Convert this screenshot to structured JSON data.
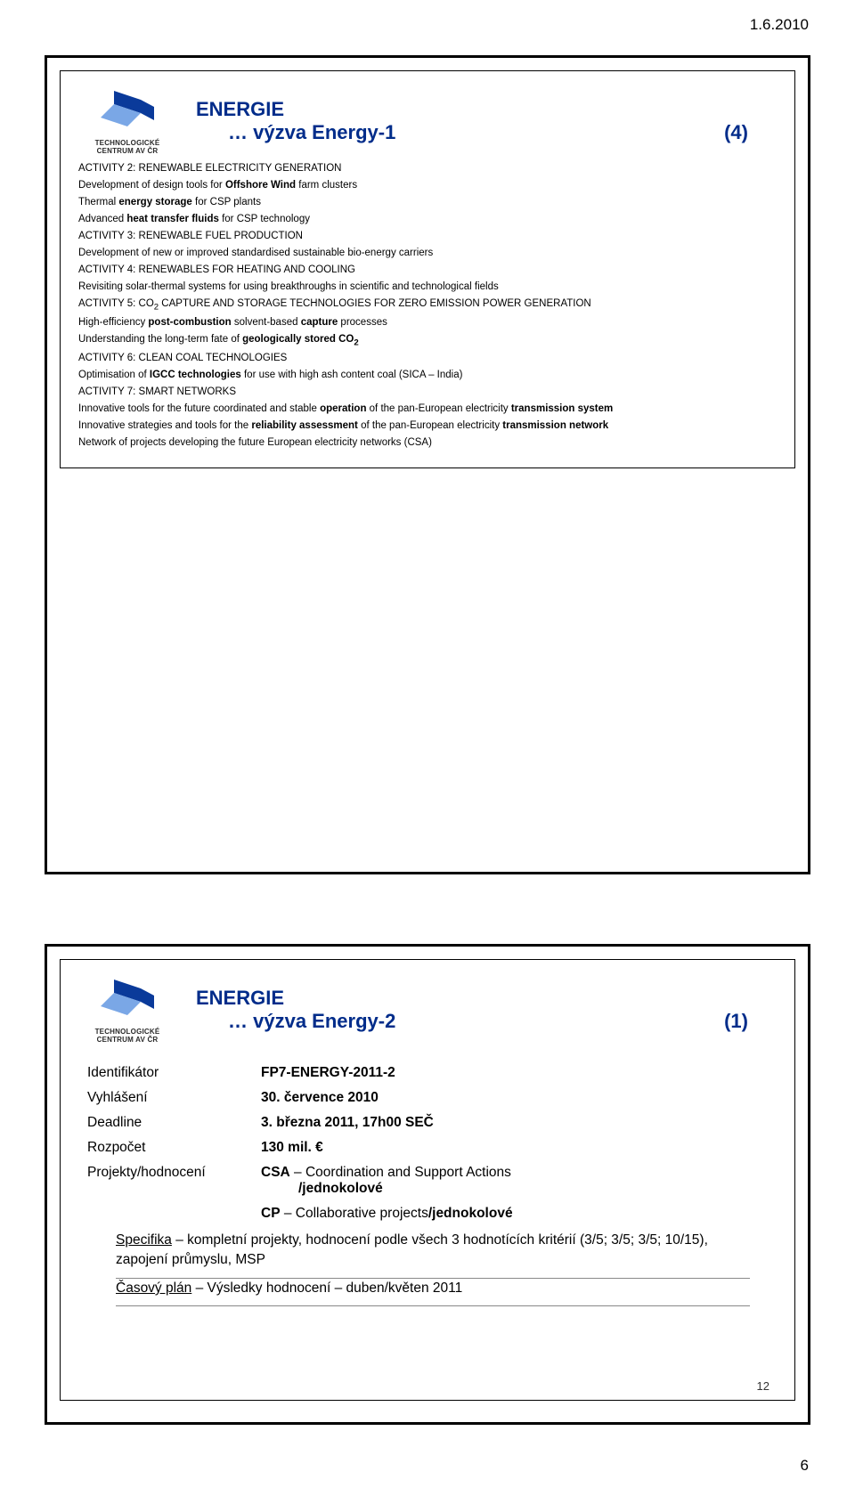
{
  "page": {
    "date": "1.6.2010",
    "footer_page_num": "6"
  },
  "logo": {
    "line1": "TECHNOLOGICKÉ",
    "line2": "CENTRUM AV ČR",
    "color_primary": "#0a3a9a",
    "color_secondary": "#7aa7e6"
  },
  "slide1": {
    "title_top": "ENERGIE",
    "title_sub": "… výzva Energy-1",
    "title_tag": "(4)",
    "lines": [
      {
        "t": "ACTIVITY 2: RENEWABLE ELECTRICITY GENERATION"
      },
      {
        "html": "Development of design tools for <b>Offshore Wind</b> farm clusters"
      },
      {
        "html": "Thermal <b>energy storage</b> for CSP plants"
      },
      {
        "html": "Advanced <b>heat transfer fluids</b> for CSP technology"
      },
      {
        "t": "ACTIVITY 3: RENEWABLE FUEL PRODUCTION"
      },
      {
        "html": "Development of new or improved standardised sustainable bio-energy carriers"
      },
      {
        "t": "ACTIVITY 4: RENEWABLES FOR HEATING AND COOLING"
      },
      {
        "html": "Revisiting solar-thermal systems for using breakthroughs in scientific and technological fields"
      },
      {
        "html": "ACTIVITY 5: CO<sub>2</sub> CAPTURE AND STORAGE TECHNOLOGIES FOR ZERO EMISSION POWER GENERATION"
      },
      {
        "html": "High-efficiency <b>post-combustion</b> solvent-based <b>capture</b> processes"
      },
      {
        "html": "Understanding the long-term fate of <b>geologically stored CO<sub>2</sub></b>"
      },
      {
        "t": "ACTIVITY 6: CLEAN COAL TECHNOLOGIES"
      },
      {
        "html": "Optimisation of <b>IGCC technologies</b> for use with high ash content coal (SICA – India)"
      },
      {
        "t": "ACTIVITY 7: SMART NETWORKS"
      },
      {
        "html": "Innovative tools for the future coordinated and stable <b>operation</b> of the pan-European electricity <b>transmission system</b>"
      },
      {
        "html": "Innovative strategies and tools for the <b>reliability assessment</b> of the pan-European electricity <b>transmission network</b>"
      },
      {
        "html": "Network of projects developing the future European electricity networks (CSA)"
      }
    ]
  },
  "slide2": {
    "title_top": "ENERGIE",
    "title_sub": "… výzva Energy-2",
    "title_tag": "(1)",
    "rows": [
      {
        "label": "Identifikátor",
        "value": "FP7-ENERGY-2011-2",
        "bold": true
      },
      {
        "label": "Vyhlášení",
        "value": "30. července 2010",
        "bold": true
      },
      {
        "label": "Deadline",
        "value": "3. března 2011, 17h00 SEČ",
        "bold": true
      },
      {
        "label": "Rozpočet",
        "value": "130  mil. €",
        "bold": true
      }
    ],
    "proj_label": "Projekty/hodnocení",
    "proj_val1a": "CSA",
    "proj_val1b": " – Coordination and Support Actions",
    "proj_val1c": "/jednokolové",
    "proj_val2a": "CP",
    "proj_val2b": " – Collaborative projects",
    "proj_val2c": "/jednokolové",
    "spec1_u": "Specifika",
    "spec1_rest": " – kompletní projekty, hodnocení podle všech 3 hodnotících kritérií (3/5; 3/5; 3/5; 10/15), zapojení průmyslu, MSP",
    "spec2_u": "Časový plán",
    "spec2_rest": " – Výsledky hodnocení – duben/květen 2011",
    "page_num": "12"
  }
}
